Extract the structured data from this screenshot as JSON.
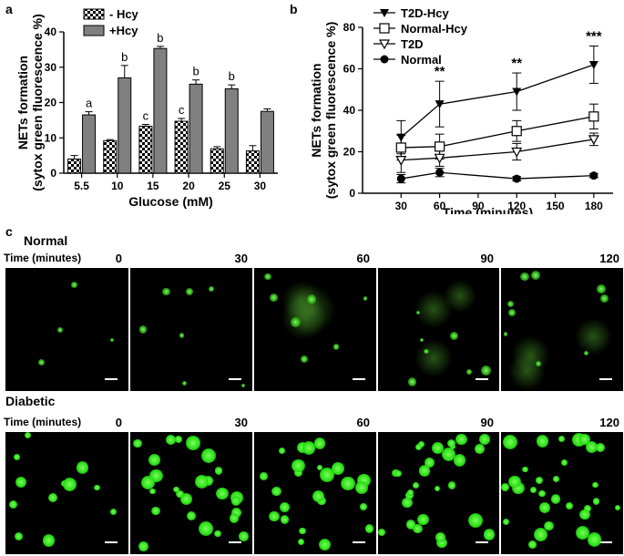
{
  "panels": {
    "a": "a",
    "b": "b",
    "c": "c"
  },
  "chart_data": [
    {
      "type": "bar",
      "categories": [
        "5.5",
        "10",
        "15",
        "20",
        "25",
        "30"
      ],
      "series": [
        {
          "name": "- Hcy",
          "values": [
            4,
            9.2,
            13.3,
            14.7,
            6.9,
            6.3
          ],
          "errors": [
            1,
            0.3,
            0.5,
            0.8,
            0.6,
            1.5
          ],
          "pattern": "checker"
        },
        {
          "name": "+Hcy",
          "values": [
            16.5,
            27,
            35.3,
            25.2,
            23.9,
            17.5
          ],
          "errors": [
            0.9,
            3.5,
            0.6,
            1.2,
            1.1,
            0.7
          ],
          "color": "#808080"
        }
      ],
      "letters": [
        {
          "category": "5.5",
          "series": "+Hcy",
          "text": "a"
        },
        {
          "category": "10",
          "series": "+Hcy",
          "text": "b"
        },
        {
          "category": "15",
          "series": "- Hcy",
          "text": "c"
        },
        {
          "category": "15",
          "series": "+Hcy",
          "text": "b"
        },
        {
          "category": "20",
          "series": "- Hcy",
          "text": "c"
        },
        {
          "category": "20",
          "series": "+Hcy",
          "text": "b"
        },
        {
          "category": "25",
          "series": "+Hcy",
          "text": "b"
        }
      ],
      "xlabel": "Glucose (mM)",
      "ylabel_line1": "NETs formation",
      "ylabel_line2": "(sytox green fluorescence %)",
      "ylim": [
        0,
        40
      ],
      "yticks": [
        0,
        10,
        20,
        30,
        40
      ],
      "legend_position": "top-left"
    },
    {
      "type": "line",
      "x": [
        30,
        60,
        120,
        180
      ],
      "series": [
        {
          "name": "T2D-Hcy",
          "marker": "filled-triangle-down",
          "values": [
            27,
            43,
            49,
            62
          ],
          "errors": [
            8,
            11,
            9,
            9
          ]
        },
        {
          "name": "Normal-Hcy",
          "marker": "open-square",
          "values": [
            22,
            22.5,
            30,
            37
          ],
          "errors": [
            6,
            6,
            5,
            6
          ]
        },
        {
          "name": "T2D",
          "marker": "open-triangle-down",
          "values": [
            16,
            17,
            20,
            26
          ],
          "errors": [
            6,
            4,
            4,
            3
          ]
        },
        {
          "name": "Normal",
          "marker": "filled-circle",
          "values": [
            7,
            10,
            7,
            8.5
          ],
          "errors": [
            2,
            2,
            1,
            1
          ]
        }
      ],
      "annotations": [
        {
          "x": 60,
          "text": "**"
        },
        {
          "x": 120,
          "text": "**"
        },
        {
          "x": 180,
          "text": "***"
        }
      ],
      "xlabel": "Time (minutes)",
      "ylabel_line1": "NETs formation",
      "ylabel_line2": "(sytox green fluorescence %)",
      "xlim": [
        0,
        195
      ],
      "xticks": [
        30,
        60,
        90,
        120,
        150,
        180
      ],
      "ylim": [
        0,
        80
      ],
      "yticks": [
        0,
        20,
        40,
        60,
        80
      ],
      "legend_position": "top-left"
    }
  ],
  "panel_c": {
    "time_label": "Time (minutes)",
    "rows": [
      {
        "title": "Normal",
        "times": [
          "0",
          "30",
          "60",
          "90",
          "120"
        ]
      },
      {
        "title": "Diabetic",
        "times": [
          "0",
          "30",
          "60",
          "90",
          "120"
        ]
      }
    ]
  }
}
